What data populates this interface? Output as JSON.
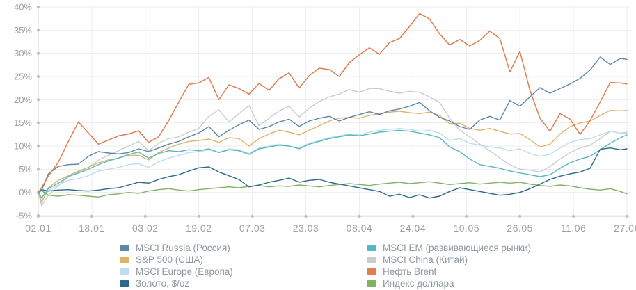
{
  "chart_data": {
    "type": "line",
    "title": "",
    "grid": true,
    "legend_position": "bottom",
    "axis_color": "#d8d8d8",
    "grid_color": "#ededed",
    "dot_color": "#c2c2c2",
    "y_axis": {
      "min": -5,
      "max": 40,
      "step": 5,
      "unit": "%",
      "tick_labels": [
        "40%",
        "35%",
        "30%",
        "25%",
        "20%",
        "15%",
        "10%",
        "5%",
        "0%",
        "-5%"
      ],
      "tick_values": [
        40,
        35,
        30,
        25,
        20,
        15,
        10,
        5,
        0,
        -5
      ]
    },
    "x_axis": {
      "tick_labels": [
        "02.01",
        "18.01",
        "03.02",
        "19.02",
        "07.03",
        "23.03",
        "08.04",
        "24.04",
        "10.05",
        "26.05",
        "11.06",
        "27.06"
      ],
      "tick_days": [
        0,
        16,
        32,
        48,
        64,
        80,
        96,
        112,
        128,
        144,
        160,
        176
      ]
    },
    "x_days": [
      0,
      1,
      3,
      6,
      9,
      12,
      15,
      18,
      21,
      24,
      27,
      30,
      33,
      36,
      39,
      42,
      45,
      48,
      51,
      54,
      57,
      60,
      63,
      66,
      69,
      72,
      75,
      78,
      81,
      84,
      87,
      90,
      93,
      96,
      99,
      102,
      105,
      108,
      111,
      114,
      117,
      120,
      123,
      126,
      129,
      132,
      135,
      138,
      141,
      144,
      147,
      150,
      153,
      156,
      159,
      162,
      165,
      168,
      171,
      174,
      176
    ],
    "series": [
      {
        "key": "china",
        "name": "MSCI China (Китай)",
        "color": "#c9cdcd",
        "width": 1.4,
        "values": [
          0,
          -2.9,
          -0.6,
          1.4,
          3.4,
          4.4,
          5.4,
          7.0,
          8.0,
          9.0,
          10.0,
          11.0,
          9.0,
          10.6,
          11.6,
          12.0,
          13.0,
          13.8,
          16.4,
          17.8,
          15.2,
          17.0,
          18.7,
          14.4,
          16.0,
          17.6,
          18.6,
          16.2,
          18.2,
          19.6,
          20.6,
          21.2,
          22.2,
          21.6,
          22.4,
          22.4,
          21.8,
          21.4,
          21.8,
          21.6,
          20.6,
          19.4,
          16.0,
          13.4,
          12.0,
          10.4,
          9.0,
          7.4,
          6.0,
          5.0,
          4.8,
          4.4,
          5.6,
          7.2,
          8.6,
          9.6,
          10.2,
          11.6,
          13.2,
          12.8,
          12.8
        ]
      },
      {
        "key": "europe",
        "name": "MSCI Europe (Европа)",
        "color": "#bedcee",
        "width": 1.4,
        "values": [
          0,
          -1.8,
          0.4,
          1.6,
          2.6,
          3.0,
          3.6,
          4.6,
          5.0,
          5.4,
          6.0,
          6.2,
          5.4,
          6.6,
          7.4,
          8.0,
          8.6,
          8.8,
          9.2,
          8.6,
          9.4,
          9.2,
          8.4,
          9.6,
          10.0,
          10.4,
          10.0,
          9.6,
          10.6,
          11.2,
          11.8,
          12.2,
          12.6,
          12.4,
          13.0,
          13.4,
          13.6,
          13.8,
          13.6,
          13.2,
          13.4,
          12.8,
          11.2,
          11.6,
          10.6,
          10.2,
          9.8,
          9.6,
          9.0,
          9.4,
          8.4,
          7.8,
          8.2,
          9.6,
          10.8,
          11.4,
          11.6,
          12.4,
          13.2,
          12.8,
          13.0
        ]
      },
      {
        "key": "sp500",
        "name": "S&P 500 (США)",
        "color": "#e0b36c",
        "width": 1.4,
        "values": [
          0,
          -2.2,
          1.0,
          2.6,
          3.6,
          4.6,
          5.4,
          6.4,
          7.0,
          7.4,
          8.0,
          8.0,
          7.0,
          8.6,
          9.6,
          10.4,
          11.0,
          11.2,
          11.5,
          10.8,
          11.8,
          11.6,
          10.0,
          11.6,
          12.6,
          13.4,
          13.0,
          12.4,
          13.4,
          14.4,
          15.4,
          16.0,
          16.2,
          16.0,
          16.6,
          17.0,
          17.3,
          17.5,
          17.2,
          17.0,
          17.3,
          16.6,
          14.8,
          14.9,
          13.8,
          13.4,
          13.8,
          13.2,
          12.6,
          12.7,
          11.4,
          9.8,
          10.4,
          12.6,
          14.2,
          15.0,
          15.4,
          16.6,
          17.7,
          17.6,
          17.7
        ]
      },
      {
        "key": "em",
        "name": "MSCI EM (развивающиеся рынки)",
        "color": "#57b8c2",
        "width": 1.4,
        "values": [
          0,
          -1.2,
          0.8,
          2.0,
          3.4,
          4.2,
          5.0,
          6.0,
          6.8,
          7.4,
          8.2,
          8.7,
          7.4,
          8.4,
          9.0,
          8.8,
          9.2,
          9.0,
          9.4,
          8.6,
          9.2,
          9.0,
          8.2,
          9.4,
          9.8,
          10.2,
          10.0,
          9.4,
          10.4,
          11.0,
          11.6,
          12.0,
          12.4,
          12.2,
          12.6,
          13.0,
          13.2,
          13.4,
          13.2,
          12.8,
          12.4,
          11.8,
          9.8,
          8.8,
          7.2,
          6.0,
          5.6,
          5.2,
          4.6,
          4.2,
          3.8,
          3.4,
          3.8,
          5.2,
          6.4,
          7.2,
          7.8,
          9.2,
          10.6,
          11.8,
          12.4
        ]
      },
      {
        "key": "dxy",
        "name": "Индекс доллара",
        "color": "#84b163",
        "width": 1.4,
        "values": [
          0,
          0.4,
          -0.6,
          -0.8,
          -0.5,
          -0.6,
          -0.8,
          -1.0,
          -0.5,
          -0.3,
          0.0,
          -0.2,
          0.3,
          0.6,
          0.8,
          0.5,
          0.3,
          0.6,
          0.8,
          1.0,
          1.2,
          1.0,
          1.3,
          1.5,
          1.2,
          1.4,
          1.3,
          1.6,
          1.4,
          1.2,
          1.5,
          1.7,
          1.9,
          1.7,
          1.5,
          1.8,
          2.0,
          2.2,
          1.9,
          2.1,
          2.3,
          2.0,
          1.7,
          1.9,
          2.1,
          1.8,
          2.0,
          2.2,
          2.0,
          2.2,
          1.8,
          1.5,
          1.3,
          1.6,
          1.4,
          1.0,
          0.7,
          0.5,
          0.8,
          0.2,
          -0.3
        ]
      },
      {
        "key": "gold",
        "name": "Золото, $/oz",
        "color": "#2a6a8c",
        "width": 1.4,
        "values": [
          0,
          0.6,
          0.3,
          0.5,
          0.6,
          0.4,
          0.3,
          0.5,
          0.8,
          1.0,
          1.6,
          2.2,
          2.0,
          2.8,
          3.4,
          3.8,
          4.6,
          5.3,
          5.5,
          4.4,
          3.6,
          2.8,
          1.2,
          1.6,
          2.2,
          2.6,
          3.1,
          2.2,
          2.6,
          2.8,
          2.2,
          1.8,
          1.4,
          1.0,
          0.6,
          0.2,
          -0.8,
          -0.4,
          -1.1,
          -0.5,
          -1.2,
          -0.8,
          0.2,
          1.0,
          0.6,
          0.2,
          -0.2,
          -0.6,
          -0.4,
          0.0,
          0.8,
          1.8,
          2.8,
          3.5,
          4.0,
          4.4,
          5.2,
          9.3,
          9.6,
          9.2,
          9.4
        ]
      },
      {
        "key": "russia",
        "name": "MSCI Russia (Россия)",
        "color": "#5d87a5",
        "width": 1.4,
        "values": [
          0,
          0.4,
          4.0,
          5.6,
          6.0,
          6.1,
          7.8,
          8.8,
          8.5,
          8.3,
          8.6,
          9.4,
          8.8,
          9.6,
          10.4,
          11.0,
          12.0,
          12.8,
          14.2,
          12.0,
          13.4,
          14.6,
          15.6,
          13.6,
          14.2,
          15.2,
          15.8,
          14.2,
          15.4,
          16.0,
          16.4,
          15.4,
          16.2,
          16.8,
          17.4,
          16.8,
          17.6,
          18.0,
          18.6,
          19.4,
          17.6,
          16.2,
          15.4,
          14.2,
          13.6,
          15.6,
          16.4,
          15.6,
          19.8,
          18.6,
          20.6,
          22.6,
          21.4,
          22.4,
          23.4,
          24.6,
          26.4,
          29.2,
          27.6,
          28.9,
          28.7
        ]
      },
      {
        "key": "brent",
        "name": "Нефть Brent",
        "color": "#e07e52",
        "width": 1.5,
        "values": [
          0,
          1.0,
          3.5,
          6.5,
          11.0,
          15.2,
          12.8,
          10.4,
          11.3,
          12.2,
          12.6,
          13.3,
          10.8,
          12.0,
          15.5,
          19.5,
          23.3,
          23.6,
          24.8,
          20.0,
          23.2,
          22.4,
          21.2,
          23.5,
          22.0,
          24.5,
          25.8,
          22.5,
          25.2,
          26.8,
          26.5,
          25.0,
          28.0,
          29.7,
          31.2,
          29.8,
          32.3,
          33.2,
          35.8,
          38.6,
          37.4,
          34.2,
          31.8,
          33.0,
          31.6,
          32.8,
          34.8,
          33.2,
          26.0,
          30.4,
          22.0,
          16.0,
          13.2,
          17.0,
          15.8,
          12.5,
          15.5,
          19.5,
          23.7,
          23.6,
          23.4
        ]
      }
    ],
    "legend": {
      "columns": [
        [
          "russia",
          "sp500",
          "europe",
          "gold"
        ],
        [
          "em",
          "china",
          "brent",
          "dxy"
        ]
      ]
    }
  }
}
